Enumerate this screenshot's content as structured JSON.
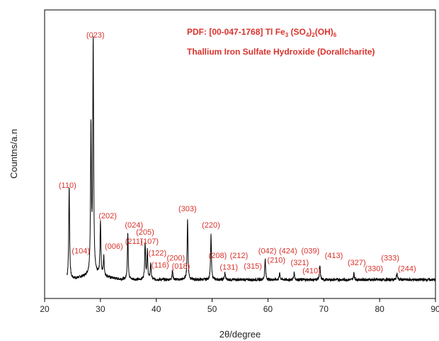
{
  "chart_data": {
    "type": "line",
    "xlabel": "2θ/degree",
    "ylabel": "Countns/a.n",
    "xlim": [
      20,
      90
    ],
    "xticks": [
      20,
      30,
      40,
      50,
      60,
      70,
      80,
      90
    ],
    "ylim": [
      -0.08,
      1.15
    ],
    "grid": false,
    "legend": {
      "position": "top-right",
      "line1_prefix": "PDF: [00-047-1768] Tl Fe",
      "line1_sub1": "3",
      "line1_mid1": " (SO",
      "line1_sub2": "4",
      "line1_mid2": ")",
      "line1_sub3": "2",
      "line1_mid3": "(OH)",
      "line1_sub4": "6",
      "line2": "Thallium Iron Sulfate Hydroxide (Dorallcharite)"
    },
    "background": 0.0,
    "peaks": [
      {
        "x": 24.4,
        "y": 0.4
      },
      {
        "x": 28.7,
        "y": 1.0
      },
      {
        "x": 28.3,
        "y": 0.62
      },
      {
        "x": 30.0,
        "y": 0.23
      },
      {
        "x": 30.6,
        "y": 0.08
      },
      {
        "x": 34.9,
        "y": 0.2
      },
      {
        "x": 38.0,
        "y": 0.16
      },
      {
        "x": 38.4,
        "y": 0.12
      },
      {
        "x": 39.0,
        "y": 0.07
      },
      {
        "x": 42.9,
        "y": 0.04
      },
      {
        "x": 45.6,
        "y": 0.26
      },
      {
        "x": 49.8,
        "y": 0.19
      },
      {
        "x": 52.3,
        "y": 0.03
      },
      {
        "x": 59.5,
        "y": 0.09
      },
      {
        "x": 62.1,
        "y": 0.03
      },
      {
        "x": 64.7,
        "y": 0.03
      },
      {
        "x": 69.3,
        "y": 0.06
      },
      {
        "x": 75.4,
        "y": 0.03
      },
      {
        "x": 83.1,
        "y": 0.03
      }
    ],
    "labels": [
      {
        "text": "(110)",
        "x": 24.1,
        "y": 0.38
      },
      {
        "text": "(023)",
        "x": 29.1,
        "y": 1.02
      },
      {
        "text": "(104)",
        "x": 26.5,
        "y": 0.1
      },
      {
        "text": "(202)",
        "x": 31.3,
        "y": 0.25
      },
      {
        "text": "(006)",
        "x": 32.4,
        "y": 0.12
      },
      {
        "text": "(024)",
        "x": 36.0,
        "y": 0.21
      },
      {
        "text": "(211)",
        "x": 36.0,
        "y": 0.14
      },
      {
        "text": "(205)",
        "x": 38.0,
        "y": 0.18
      },
      {
        "text": "(107)",
        "x": 38.8,
        "y": 0.14
      },
      {
        "text": "(122)",
        "x": 40.2,
        "y": 0.09
      },
      {
        "text": "(116)",
        "x": 40.7,
        "y": 0.04
      },
      {
        "text": "(200)",
        "x": 43.5,
        "y": 0.07
      },
      {
        "text": "(018)",
        "x": 44.4,
        "y": 0.035
      },
      {
        "text": "(303)",
        "x": 45.6,
        "y": 0.28
      },
      {
        "text": "(220)",
        "x": 49.8,
        "y": 0.21
      },
      {
        "text": "(208)",
        "x": 51.0,
        "y": 0.08
      },
      {
        "text": "(212)",
        "x": 54.8,
        "y": 0.08
      },
      {
        "text": "(131)",
        "x": 53.0,
        "y": 0.03
      },
      {
        "text": "(315)",
        "x": 57.3,
        "y": 0.035
      },
      {
        "text": "(042)",
        "x": 59.9,
        "y": 0.1
      },
      {
        "text": "(210)",
        "x": 61.5,
        "y": 0.06
      },
      {
        "text": "(424)",
        "x": 63.6,
        "y": 0.1
      },
      {
        "text": "(039)",
        "x": 67.6,
        "y": 0.1
      },
      {
        "text": "(321)",
        "x": 65.7,
        "y": 0.05
      },
      {
        "text": "(410)",
        "x": 67.8,
        "y": 0.015
      },
      {
        "text": "(413)",
        "x": 71.8,
        "y": 0.08
      },
      {
        "text": "(327)",
        "x": 75.9,
        "y": 0.05
      },
      {
        "text": "(330)",
        "x": 79.0,
        "y": 0.025
      },
      {
        "text": "(333)",
        "x": 81.9,
        "y": 0.07
      },
      {
        "text": "(244)",
        "x": 84.9,
        "y": 0.025
      }
    ]
  }
}
